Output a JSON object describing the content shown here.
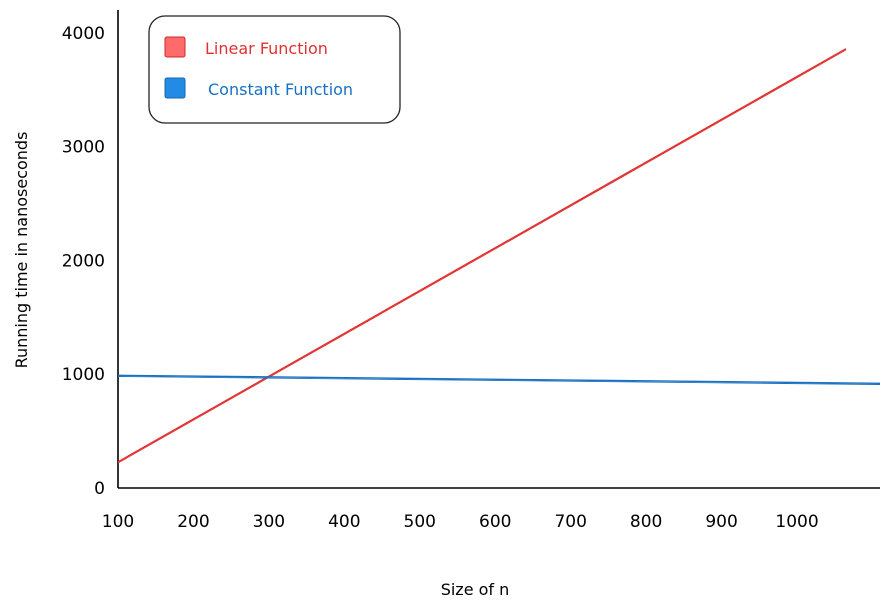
{
  "chart_data": {
    "type": "line",
    "xlabel": "Size of n",
    "ylabel": "Running time in nanoseconds",
    "x_ticks": [
      "100",
      "200",
      "300",
      "400",
      "500",
      "600",
      "700",
      "800",
      "900",
      "1000"
    ],
    "y_ticks": [
      "0",
      "1000",
      "2000",
      "3000",
      "4000"
    ],
    "xlim": [
      100,
      1110
    ],
    "ylim": [
      0,
      4200
    ],
    "legend_position": "top-left",
    "grid": false,
    "series": [
      {
        "name": "Linear Function",
        "color": "#e03131",
        "x": [
          100,
          1065
        ],
        "y": [
          230,
          3860
        ]
      },
      {
        "name": "Constant Function",
        "color": "#1971c2",
        "x": [
          100,
          1110
        ],
        "y": [
          990,
          920
        ]
      }
    ]
  }
}
